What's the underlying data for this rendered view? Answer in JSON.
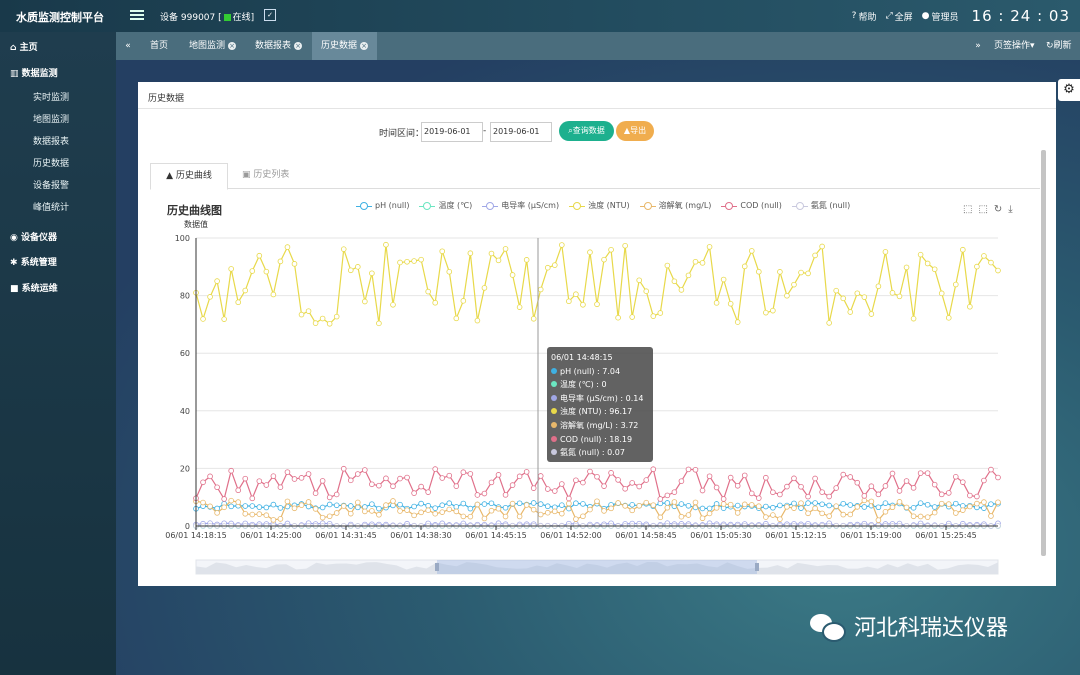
{
  "header": {
    "app_title": "水质监测控制平台",
    "device_label": "设备",
    "device_id": "999007",
    "online_status": "在线",
    "help": "帮助",
    "fullscreen": "全屏",
    "admin": "管理员",
    "clock": "16 : 24 : 03"
  },
  "sidebar": {
    "home": "主页",
    "data_monitor": "数据监测",
    "sub_items": [
      "实时监测",
      "地图监测",
      "数据报表",
      "历史数据",
      "设备报警",
      "峰值统计"
    ],
    "device_instruments": "设备仪器",
    "system_manage": "系统管理",
    "system_ops": "系统运维"
  },
  "tabs": {
    "items": [
      "首页",
      "地图监测",
      "数据报表",
      "历史数据"
    ],
    "active": "历史数据",
    "page_ops": "页签操作",
    "refresh": "刷新"
  },
  "panel": {
    "title": "历史数据",
    "range_label": "时间区间：",
    "start_date": "2019-06-01",
    "end_date": "2019-06-01",
    "separator": "-",
    "query_button": "查询数据",
    "export_button": "导出",
    "tab_curve": "历史曲线",
    "tab_list": "历史列表"
  },
  "chart_data": {
    "type": "line",
    "title": "历史曲线图",
    "ylabel": "数据值",
    "ylim": [
      0,
      100
    ],
    "yticks": [
      0,
      20,
      40,
      60,
      80,
      100
    ],
    "xticks": [
      "06/01 14:18:15",
      "06/01 14:25:00",
      "06/01 14:31:45",
      "06/01 14:38:30",
      "06/01 14:45:15",
      "06/01 14:52:00",
      "06/01 14:58:45",
      "06/01 15:05:30",
      "06/01 15:12:15",
      "06/01 15:19:00",
      "06/01 15:25:45"
    ],
    "series": [
      {
        "name": "pH (null)",
        "color": "#3fb1e3",
        "approx_range": [
          6,
          8
        ]
      },
      {
        "name": "温度 (℃)",
        "color": "#6be6c1",
        "approx_range": [
          0,
          0
        ]
      },
      {
        "name": "电导率 (μS/cm)",
        "color": "#a0a7e6",
        "approx_range": [
          0,
          1
        ]
      },
      {
        "name": "浊度 (NTU)",
        "color": "#e8d94a",
        "approx_range": [
          70,
          98
        ]
      },
      {
        "name": "溶解氧 (mg/L)",
        "color": "#e8b86b",
        "approx_range": [
          2,
          9
        ]
      },
      {
        "name": "COD (null)",
        "color": "#e0708a",
        "approx_range": [
          9,
          20
        ]
      },
      {
        "name": "氨氮 (null)",
        "color": "#c9c9de",
        "approx_range": [
          0,
          0.1
        ]
      }
    ],
    "tooltip": {
      "time": "06/01 14:48:15",
      "rows": [
        {
          "label": "pH (null) : 7.04",
          "color": "#3fb1e3"
        },
        {
          "label": "温度 (℃) : 0",
          "color": "#6be6c1"
        },
        {
          "label": "电导率 (μS/cm) : 0.14",
          "color": "#a0a7e6"
        },
        {
          "label": "浊度 (NTU) : 96.17",
          "color": "#e8d94a"
        },
        {
          "label": "溶解氧 (mg/L) : 3.72",
          "color": "#e8b86b"
        },
        {
          "label": "COD (null) : 18.19",
          "color": "#e0708a"
        },
        {
          "label": "氨氮 (null) : 0.07",
          "color": "#c9c9de"
        }
      ]
    },
    "grid": true,
    "legend_position": "top"
  },
  "watermark": "河北科瑞达仪器"
}
